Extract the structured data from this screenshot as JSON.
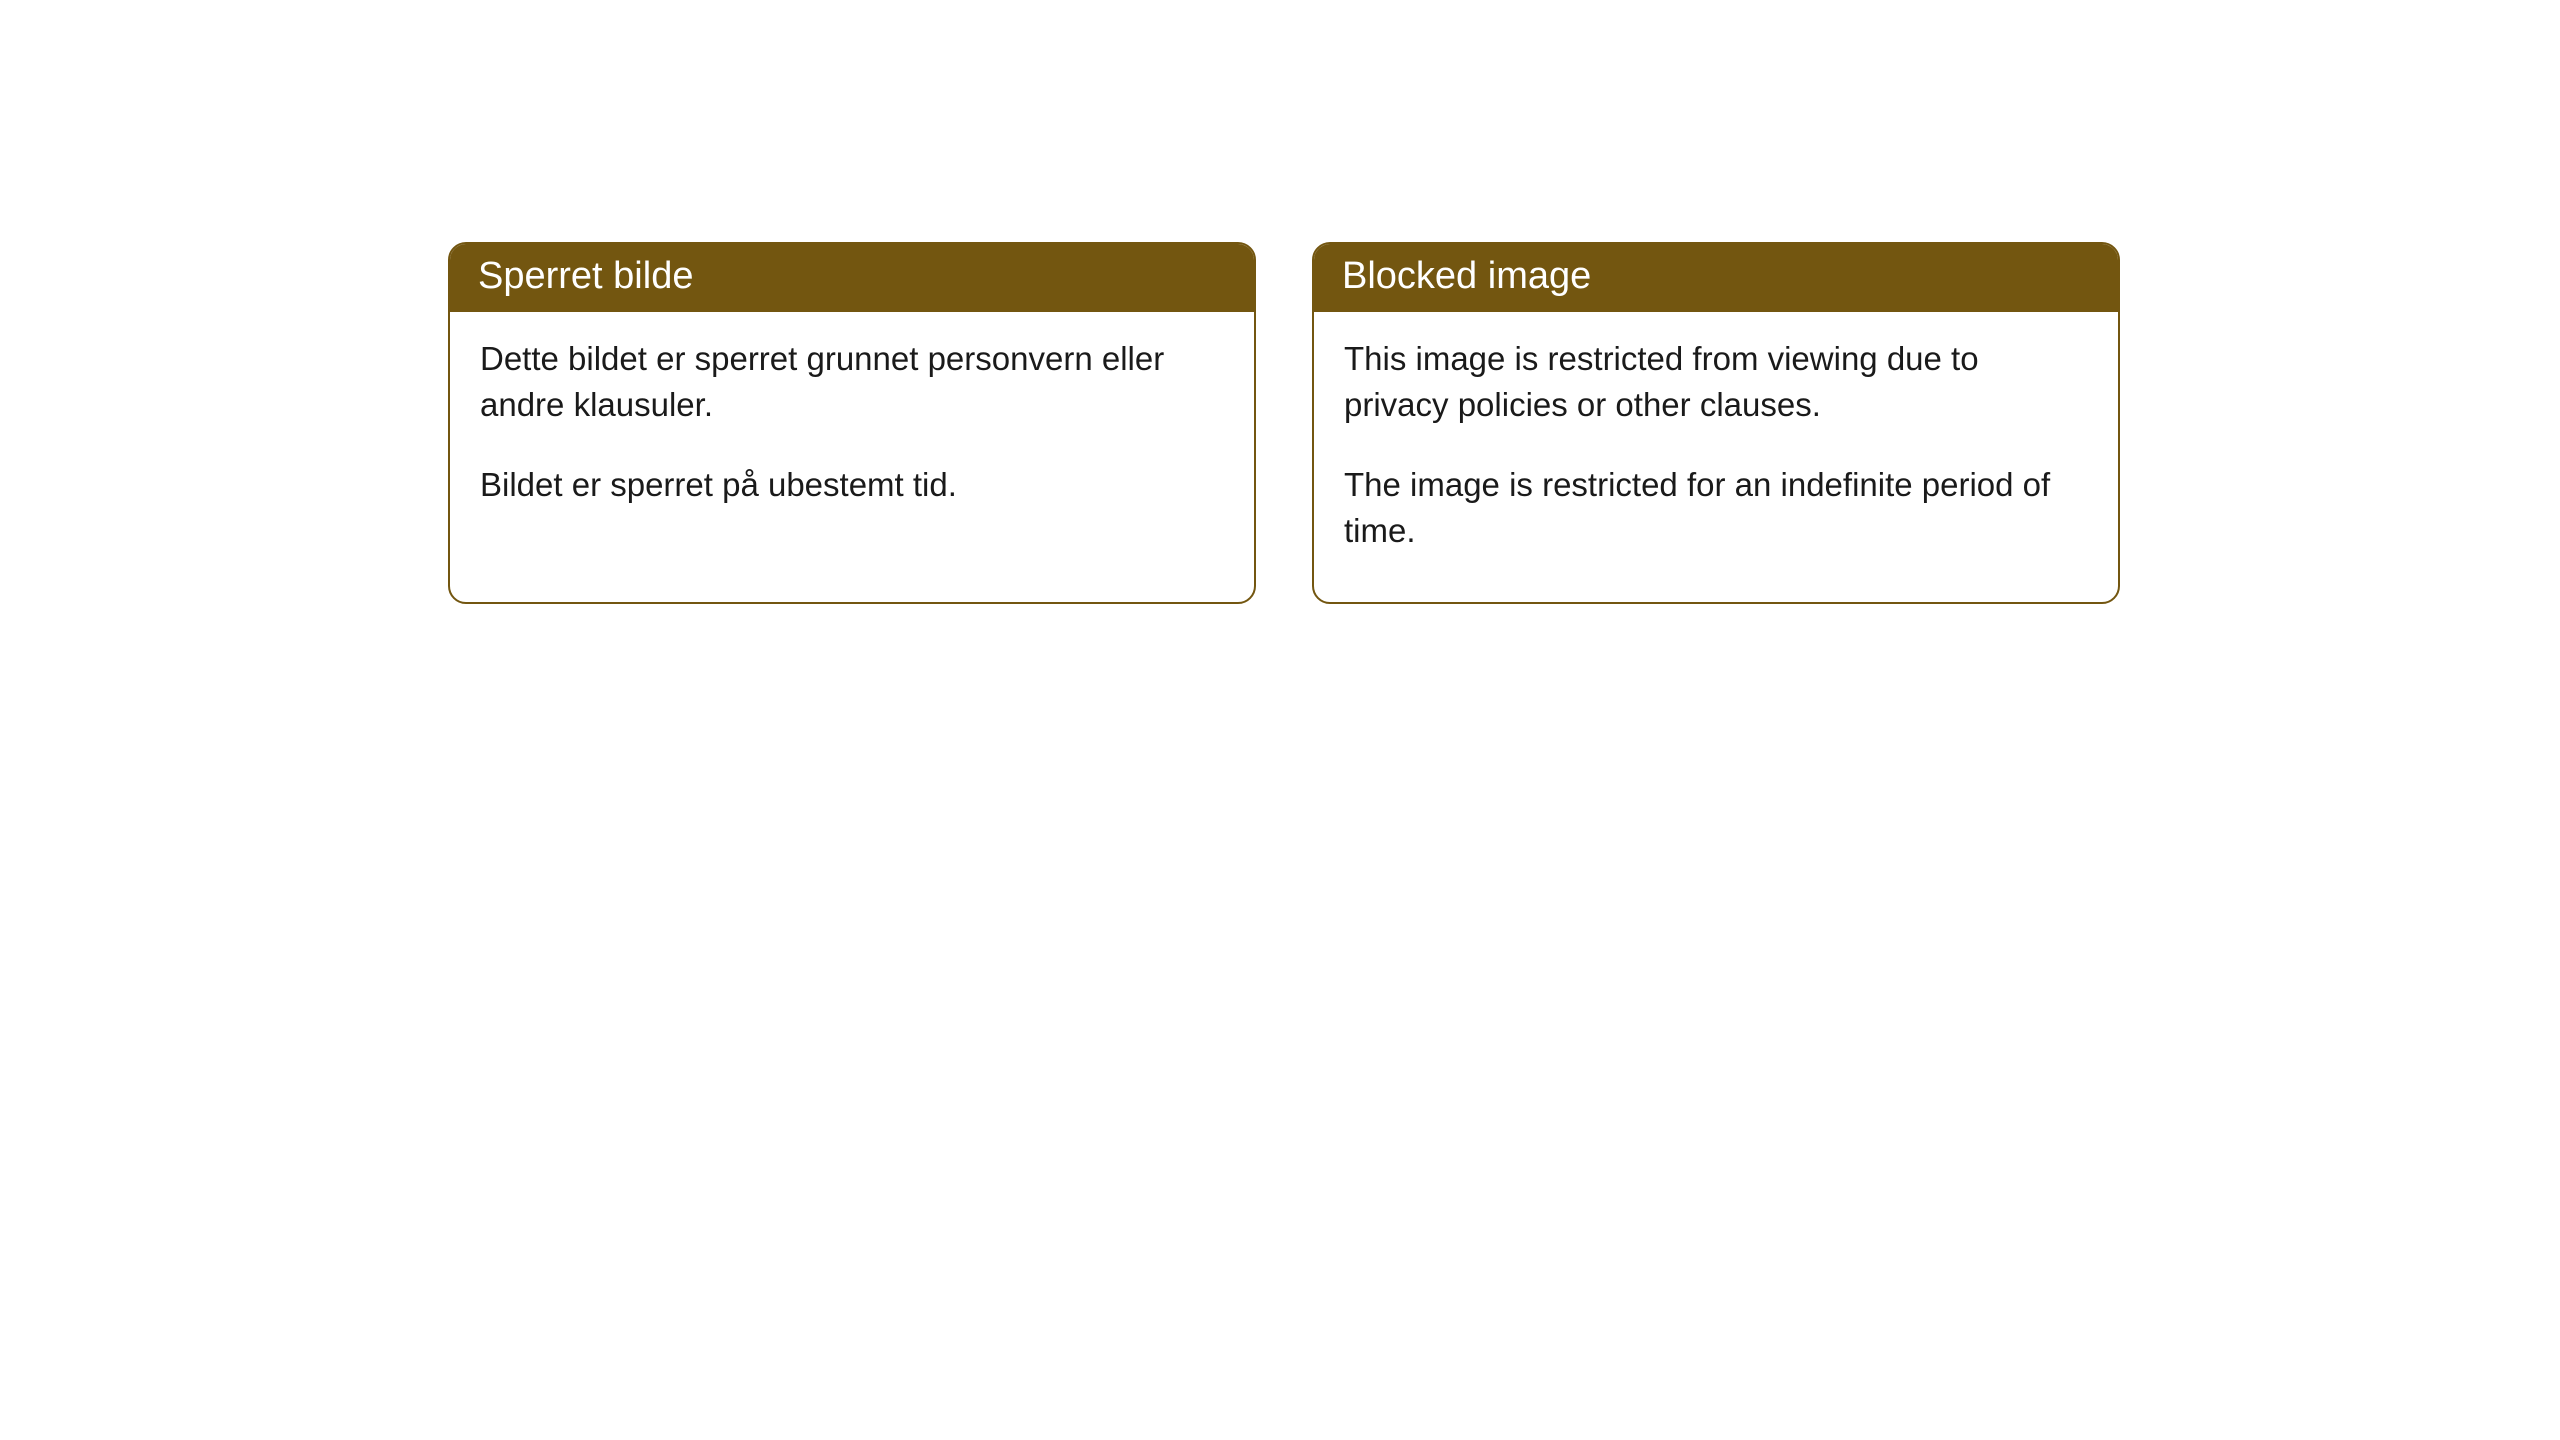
{
  "cards": [
    {
      "title": "Sperret bilde",
      "paragraph1": "Dette bildet er sperret grunnet personvern eller andre klausuler.",
      "paragraph2": "Bildet er sperret på ubestemt tid."
    },
    {
      "title": "Blocked image",
      "paragraph1": "This image is restricted from viewing due to privacy policies or other clauses.",
      "paragraph2": "The image is restricted for an indefinite period of time."
    }
  ],
  "styling": {
    "header_background": "#735610",
    "header_text_color": "#ffffff",
    "border_color": "#735610",
    "body_text_color": "#1a1a1a",
    "page_background": "#ffffff",
    "border_radius": 18,
    "header_fontsize": 38,
    "body_fontsize": 33
  }
}
